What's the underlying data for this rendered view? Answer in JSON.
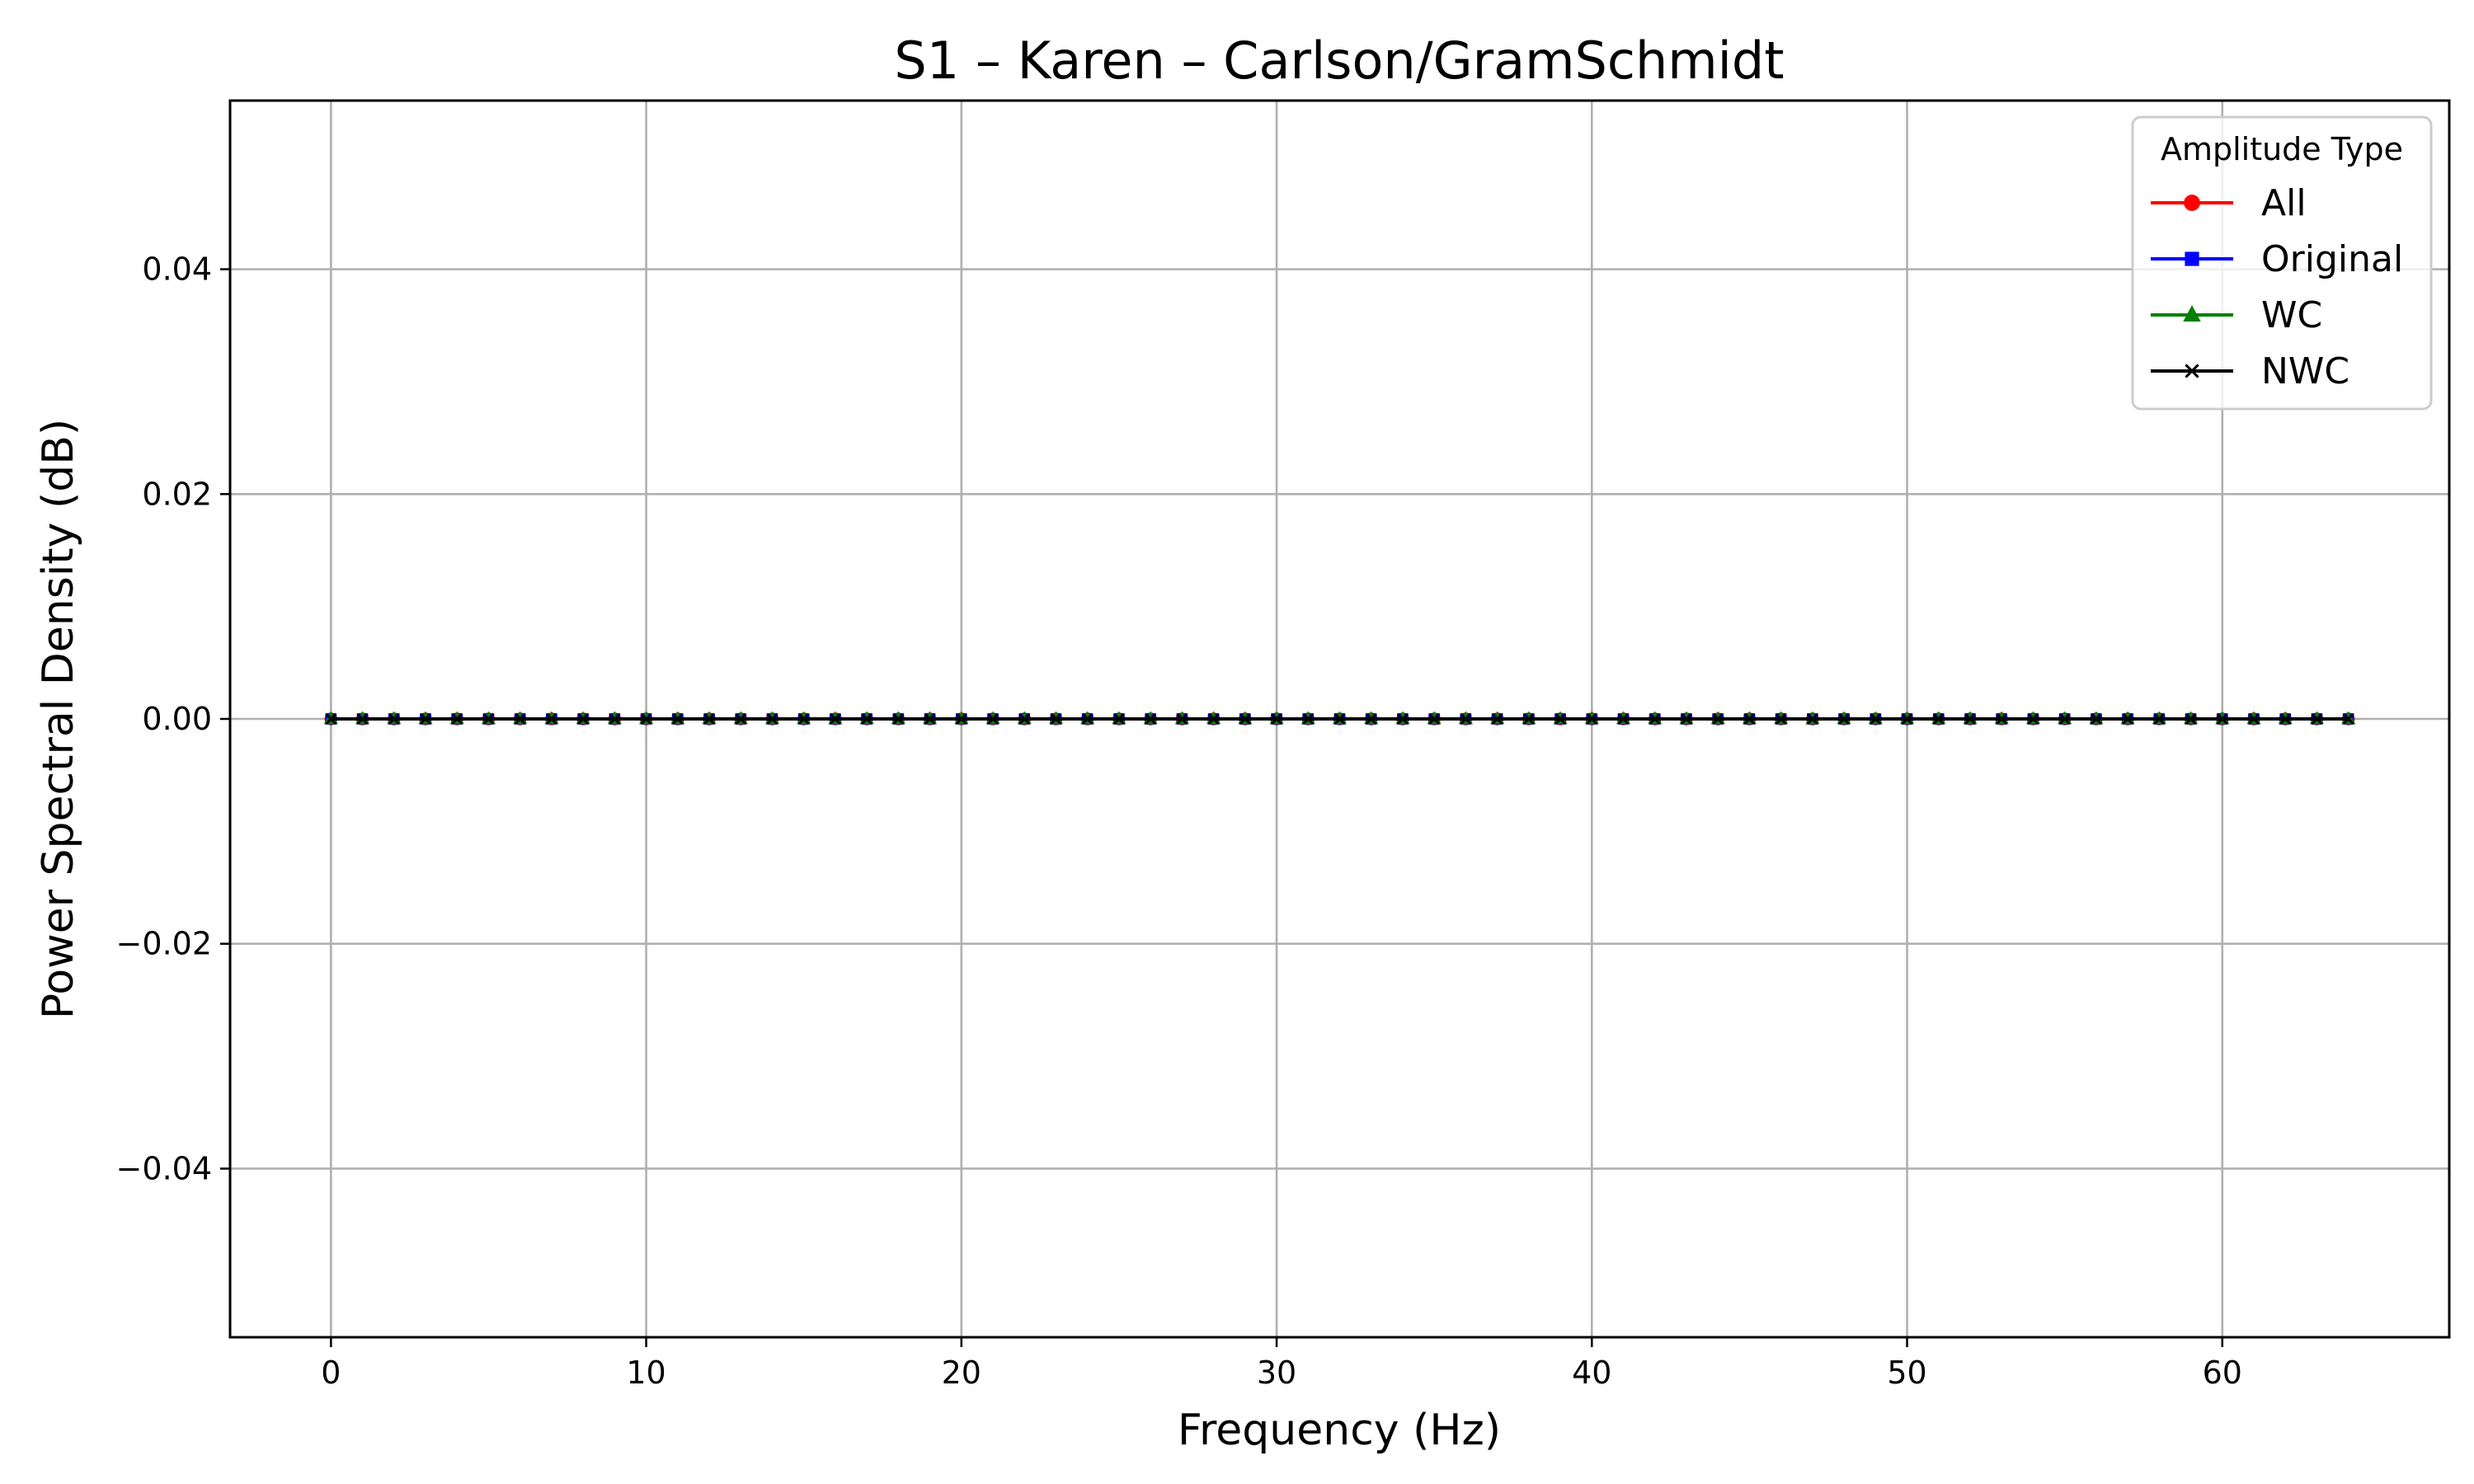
{
  "chart_data": {
    "type": "line",
    "title": "S1 – Karen – Carlson/GramSchmidt",
    "xlabel": "Frequency (Hz)",
    "ylabel": "Power Spectral Density (dB)",
    "xlim": [
      -3.2,
      67.2
    ],
    "ylim": [
      -0.055,
      0.055
    ],
    "x_ticks": [
      0,
      10,
      20,
      30,
      40,
      50,
      60
    ],
    "x_tick_labels": [
      "0",
      "10",
      "20",
      "30",
      "40",
      "50",
      "60"
    ],
    "y_ticks": [
      -0.04,
      -0.02,
      0.0,
      0.02,
      0.04
    ],
    "y_tick_labels": [
      "−0.04",
      "−0.02",
      "0.00",
      "0.02",
      "0.04"
    ],
    "grid": true,
    "legend": {
      "title": "Amplitude Type",
      "placement": "top-right"
    },
    "x": [
      0,
      1,
      2,
      3,
      4,
      5,
      6,
      7,
      8,
      9,
      10,
      11,
      12,
      13,
      14,
      15,
      16,
      17,
      18,
      19,
      20,
      21,
      22,
      23,
      24,
      25,
      26,
      27,
      28,
      29,
      30,
      31,
      32,
      33,
      34,
      35,
      36,
      37,
      38,
      39,
      40,
      41,
      42,
      43,
      44,
      45,
      46,
      47,
      48,
      49,
      50,
      51,
      52,
      53,
      54,
      55,
      56,
      57,
      58,
      59,
      60,
      61,
      62,
      63,
      64
    ],
    "series": [
      {
        "name": "All",
        "color": "#ff0000",
        "marker": "circle",
        "values": [
          0,
          0,
          0,
          0,
          0,
          0,
          0,
          0,
          0,
          0,
          0,
          0,
          0,
          0,
          0,
          0,
          0,
          0,
          0,
          0,
          0,
          0,
          0,
          0,
          0,
          0,
          0,
          0,
          0,
          0,
          0,
          0,
          0,
          0,
          0,
          0,
          0,
          0,
          0,
          0,
          0,
          0,
          0,
          0,
          0,
          0,
          0,
          0,
          0,
          0,
          0,
          0,
          0,
          0,
          0,
          0,
          0,
          0,
          0,
          0,
          0,
          0,
          0,
          0,
          0
        ]
      },
      {
        "name": "Original",
        "color": "#0000ff",
        "marker": "square",
        "values": [
          0,
          0,
          0,
          0,
          0,
          0,
          0,
          0,
          0,
          0,
          0,
          0,
          0,
          0,
          0,
          0,
          0,
          0,
          0,
          0,
          0,
          0,
          0,
          0,
          0,
          0,
          0,
          0,
          0,
          0,
          0,
          0,
          0,
          0,
          0,
          0,
          0,
          0,
          0,
          0,
          0,
          0,
          0,
          0,
          0,
          0,
          0,
          0,
          0,
          0,
          0,
          0,
          0,
          0,
          0,
          0,
          0,
          0,
          0,
          0,
          0,
          0,
          0,
          0,
          0
        ]
      },
      {
        "name": "WC",
        "color": "#008000",
        "marker": "triangle",
        "values": [
          0,
          0,
          0,
          0,
          0,
          0,
          0,
          0,
          0,
          0,
          0,
          0,
          0,
          0,
          0,
          0,
          0,
          0,
          0,
          0,
          0,
          0,
          0,
          0,
          0,
          0,
          0,
          0,
          0,
          0,
          0,
          0,
          0,
          0,
          0,
          0,
          0,
          0,
          0,
          0,
          0,
          0,
          0,
          0,
          0,
          0,
          0,
          0,
          0,
          0,
          0,
          0,
          0,
          0,
          0,
          0,
          0,
          0,
          0,
          0,
          0,
          0,
          0,
          0,
          0
        ]
      },
      {
        "name": "NWC",
        "color": "#000000",
        "marker": "x",
        "values": [
          0,
          0,
          0,
          0,
          0,
          0,
          0,
          0,
          0,
          0,
          0,
          0,
          0,
          0,
          0,
          0,
          0,
          0,
          0,
          0,
          0,
          0,
          0,
          0,
          0,
          0,
          0,
          0,
          0,
          0,
          0,
          0,
          0,
          0,
          0,
          0,
          0,
          0,
          0,
          0,
          0,
          0,
          0,
          0,
          0,
          0,
          0,
          0,
          0,
          0,
          0,
          0,
          0,
          0,
          0,
          0,
          0,
          0,
          0,
          0,
          0,
          0,
          0,
          0,
          0
        ]
      }
    ]
  }
}
